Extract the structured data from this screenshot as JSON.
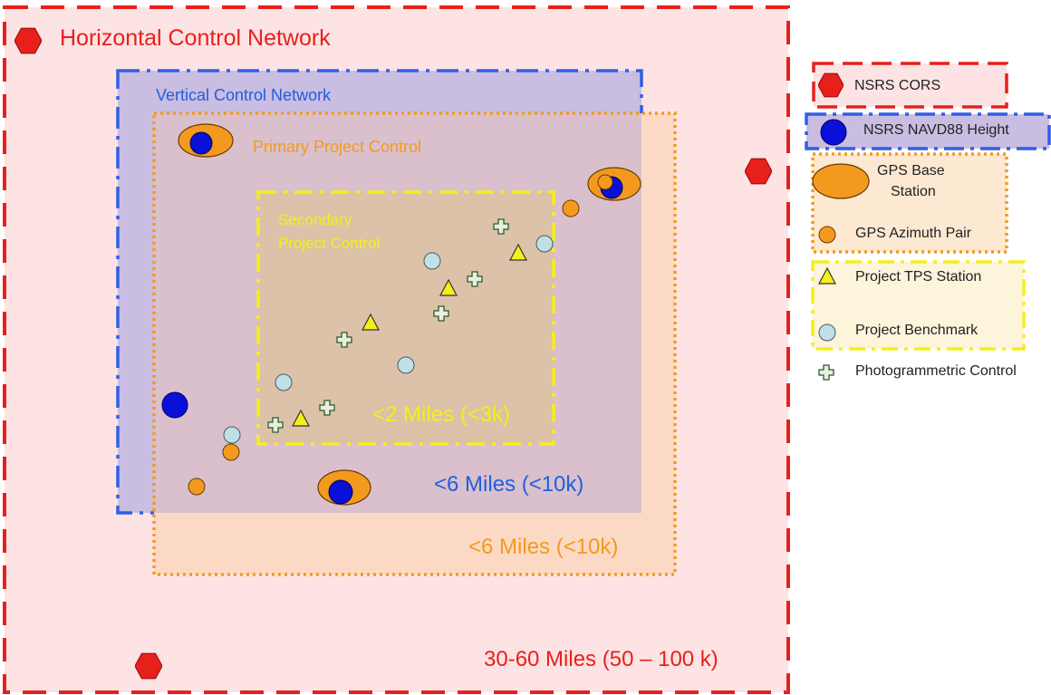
{
  "networks": {
    "horizontal": {
      "title": "Horizontal Control Network",
      "distance": "30-60 Miles (50 – 100 k)",
      "color": "#e8201c"
    },
    "vertical": {
      "title": "Vertical Control Network",
      "distance": "<6 Miles (<10k)",
      "color": "#1f5fe0"
    },
    "primary": {
      "title": "Primary Project Control",
      "distance": "<6 Miles (<10k)",
      "color": "#f39a1e"
    },
    "secondary": {
      "title_line1": "Secondary",
      "title_line2": "Project Control",
      "distance": "<2 Miles (<3k)",
      "color": "#f5ef1a"
    }
  },
  "legend": {
    "cors": {
      "label": "NSRS CORS",
      "icon": "red-hexagon"
    },
    "navd88": {
      "label": "NSRS NAVD88 Height",
      "icon": "blue-circle"
    },
    "gps_base": {
      "label_line1": "GPS Base",
      "label_line2": "Station",
      "icon": "orange-ellipse"
    },
    "gps_azimuth": {
      "label": "GPS Azimuth Pair",
      "icon": "orange-circle"
    },
    "tps": {
      "label": "Project TPS Station",
      "icon": "yellow-triangle"
    },
    "benchmark": {
      "label": "Project Benchmark",
      "icon": "light-blue-circle"
    },
    "photogrammetric": {
      "label": "Photogrammetric Control",
      "icon": "cross-marker"
    }
  }
}
